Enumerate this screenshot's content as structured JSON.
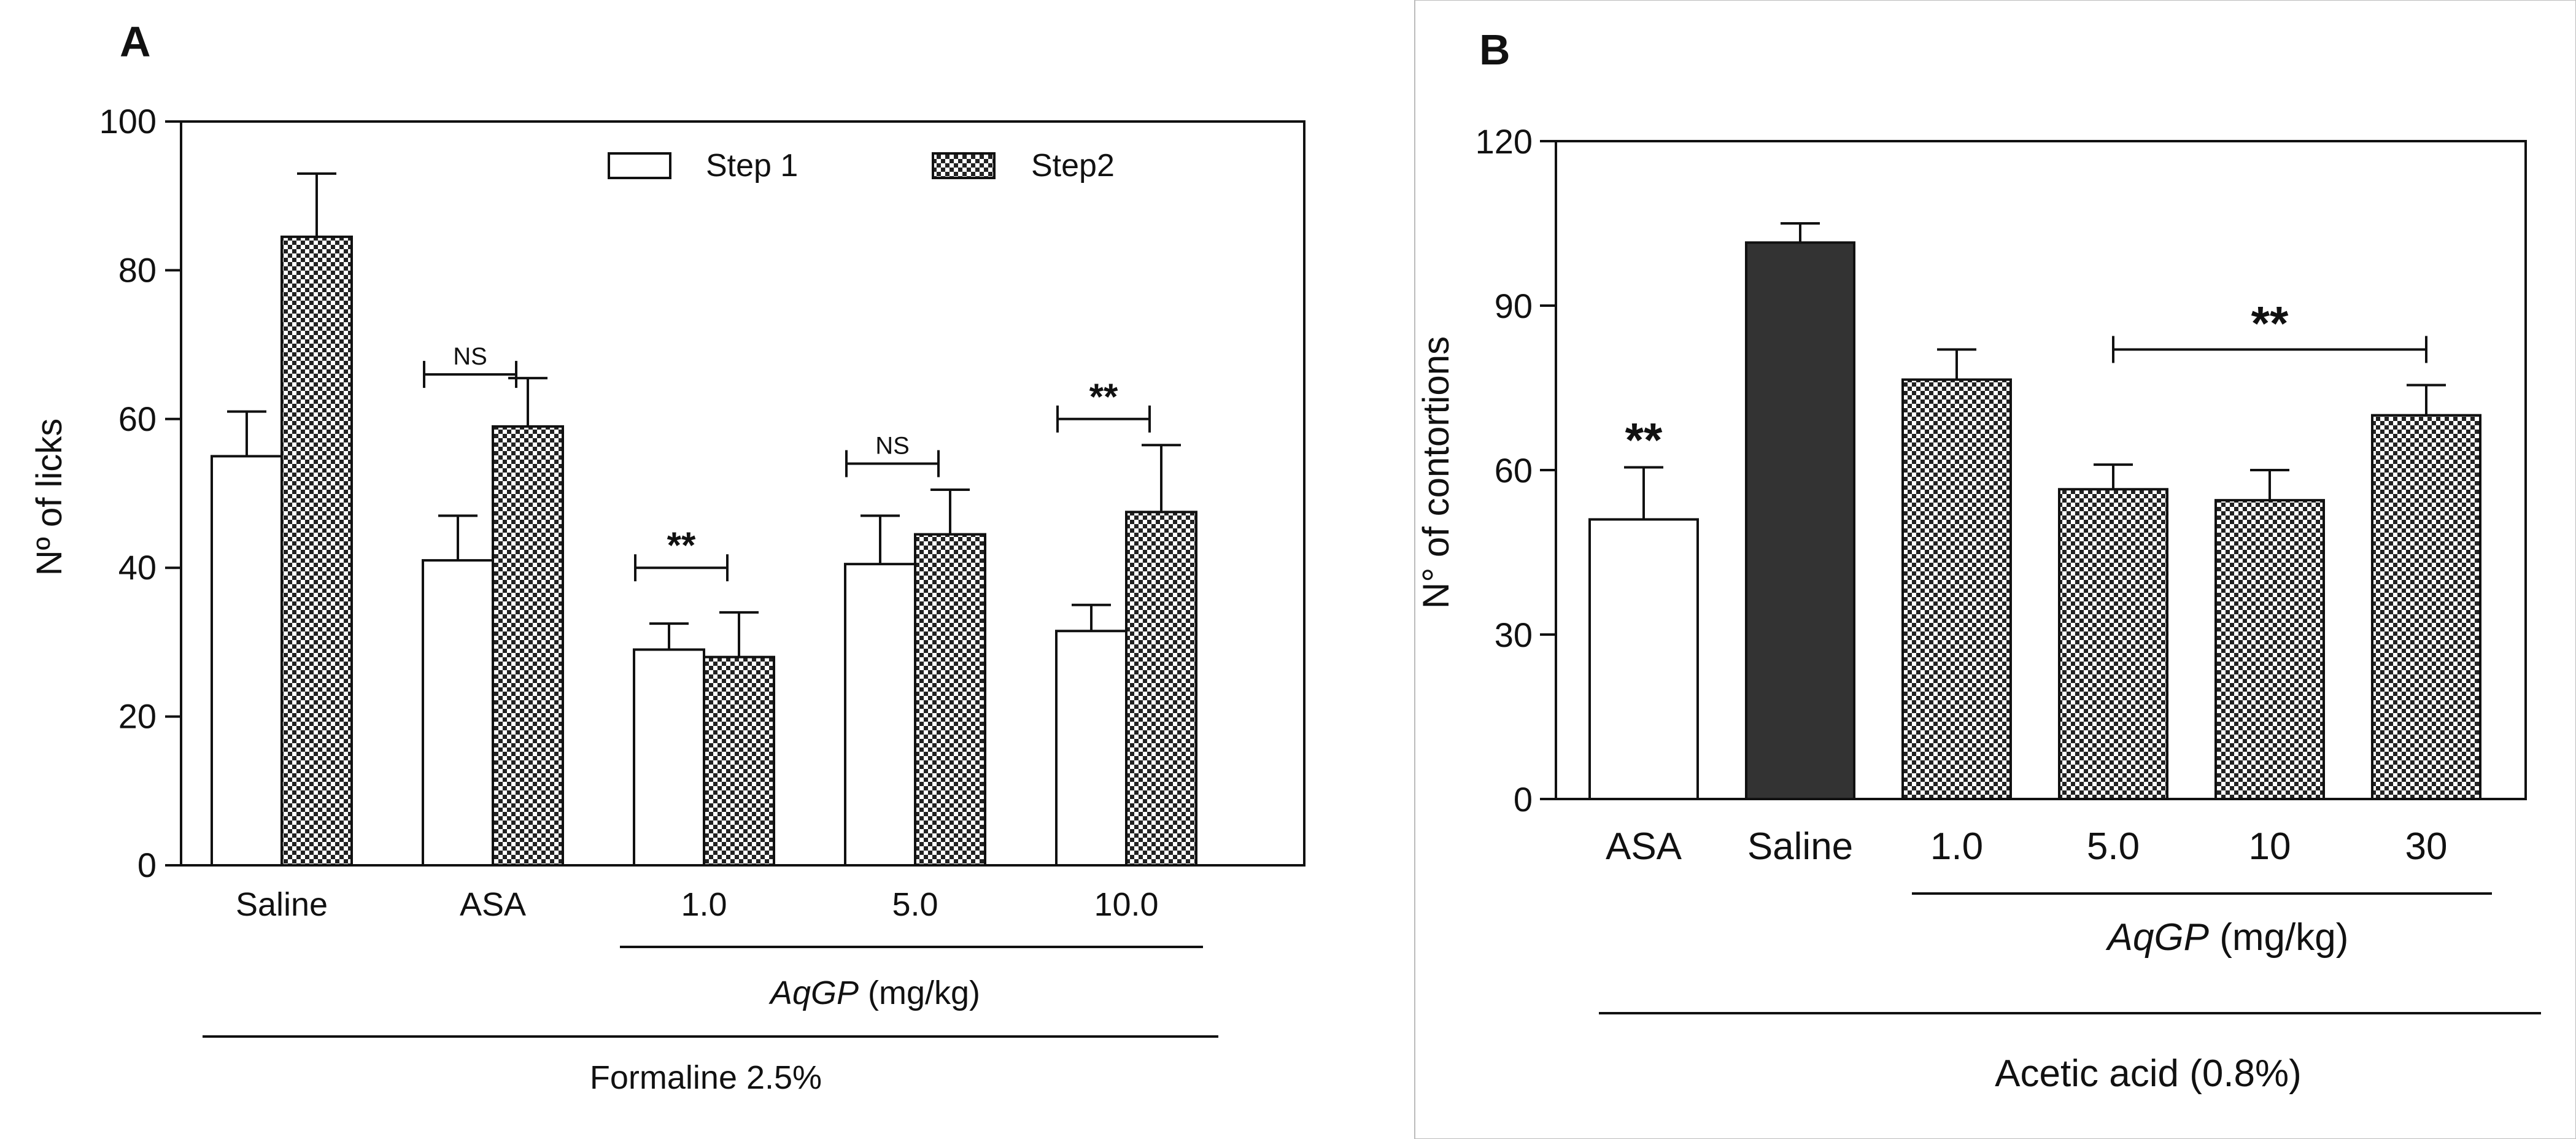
{
  "colors": {
    "ink": "#111111",
    "bar_outline": "#111111",
    "step1_fill": "#ffffff",
    "step2_fill": "checkered",
    "asa_fill": "#ffffff",
    "saline_fill": "#333333",
    "aqgp_fill": "checkered"
  },
  "chart_data": [
    {
      "type": "bar",
      "panel_label": "A",
      "title": "",
      "ylabel": "Nº of licks",
      "ylim": [
        0,
        100
      ],
      "yticks": [
        0,
        20,
        40,
        60,
        80,
        100
      ],
      "categories": [
        "Saline",
        "ASA",
        "1.0",
        "5.0",
        "10.0"
      ],
      "series": [
        {
          "name": "Step 1",
          "pattern": "open",
          "values": [
            55,
            41,
            29,
            40.5,
            31.5
          ],
          "errors": [
            6,
            6,
            3.5,
            6.5,
            3.5
          ]
        },
        {
          "name": "Step2",
          "pattern": "checkered",
          "values": [
            84.5,
            59,
            28,
            44.5,
            47.5
          ],
          "errors": [
            8.5,
            6.5,
            6,
            6,
            9
          ]
        }
      ],
      "group_bar": {
        "label_italic": "AqGP",
        "label_rest": " (mg/kg)"
      },
      "condition_label": "Formaline 2.5%",
      "annotations": [
        {
          "label": "NS",
          "category": "ASA",
          "y": 66
        },
        {
          "label": "**",
          "category": "1.0",
          "y": 40
        },
        {
          "label": "NS",
          "category": "5.0",
          "y": 54
        },
        {
          "label": "**",
          "category": "10.0",
          "y": 60
        }
      ]
    },
    {
      "type": "bar",
      "panel_label": "B",
      "title": "",
      "ylabel": "N° of contortions",
      "ylim": [
        0,
        120
      ],
      "yticks": [
        0,
        30,
        60,
        90,
        120
      ],
      "categories": [
        "ASA",
        "Saline",
        "1.0",
        "5.0",
        "10",
        "30"
      ],
      "values": [
        51,
        101.5,
        76.5,
        56.5,
        54.5,
        70
      ],
      "errors": [
        9.5,
        3.5,
        5.5,
        4.5,
        5.5,
        5.5
      ],
      "fills": [
        "open",
        "dark",
        "checkered",
        "checkered",
        "checkered",
        "checkered"
      ],
      "group_bar": {
        "label_italic": "AqGP",
        "label_rest": " (mg/kg)"
      },
      "condition_label": "Acetic acid (0.8%)",
      "annotations": [
        {
          "label": "**",
          "type": "over-bar",
          "category": "ASA"
        },
        {
          "label": "**",
          "type": "bracket",
          "from": "5.0",
          "to": "30",
          "y": 82
        }
      ]
    }
  ]
}
